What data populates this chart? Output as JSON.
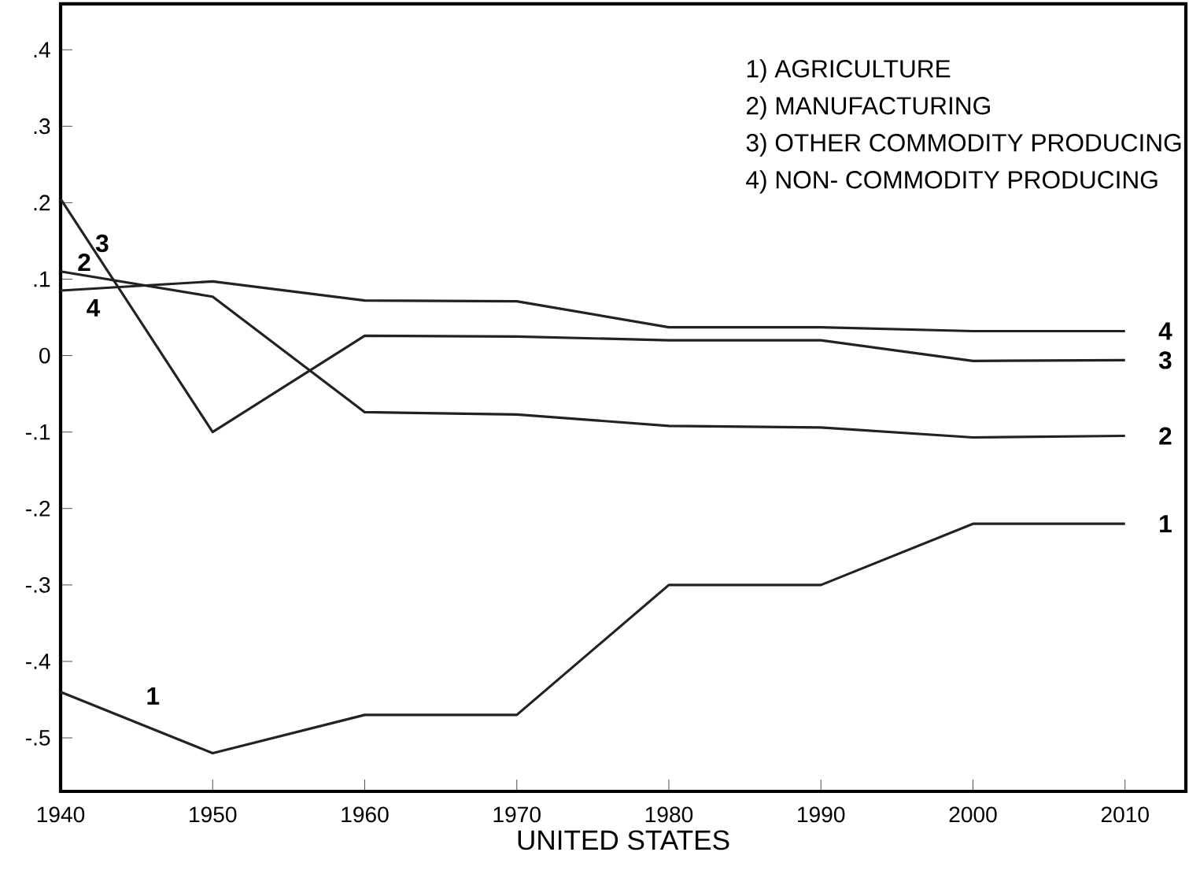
{
  "chart_data": {
    "type": "line",
    "xlabel": "UNITED STATES",
    "x": [
      1940,
      1950,
      1960,
      1970,
      1980,
      1990,
      2000,
      2010
    ],
    "series": [
      {
        "name": "1",
        "color": "#222222",
        "values": [
          -0.44,
          -0.52,
          -0.47,
          -0.47,
          -0.3,
          -0.3,
          -0.22,
          -0.22
        ]
      },
      {
        "name": "2",
        "color": "#222222",
        "values": [
          0.11,
          0.077,
          -0.074,
          -0.077,
          -0.092,
          -0.094,
          -0.107,
          -0.105
        ]
      },
      {
        "name": "3",
        "color": "#222222",
        "values": [
          0.205,
          -0.1,
          0.026,
          0.025,
          0.02,
          0.02,
          -0.007,
          -0.006
        ]
      },
      {
        "name": "4",
        "color": "#222222",
        "values": [
          0.085,
          0.097,
          0.072,
          0.071,
          0.037,
          0.037,
          0.032,
          0.032
        ]
      }
    ],
    "xlim": [
      1940,
      2014
    ],
    "ylim": [
      -0.57,
      0.46
    ],
    "xticks": [
      1940,
      1950,
      1960,
      1970,
      1980,
      1990,
      2000,
      2010
    ],
    "yticks": [
      {
        "value": -0.5,
        "label": "-.5"
      },
      {
        "value": -0.4,
        "label": "-.4"
      },
      {
        "value": -0.3,
        "label": "-.3"
      },
      {
        "value": -0.2,
        "label": "-.2"
      },
      {
        "value": -0.1,
        "label": "-.1"
      },
      {
        "value": 0,
        "label": "0"
      },
      {
        "value": 0.1,
        "label": ".1"
      },
      {
        "value": 0.2,
        "label": ".2"
      },
      {
        "value": 0.3,
        "label": ".3"
      },
      {
        "value": 0.4,
        "label": ".4"
      }
    ],
    "grid": false,
    "marker": "none",
    "line_style": "solid",
    "annotations": [
      "1) AGRICULTURE",
      "2) MANUFACTURING",
      "3) OTHER COMMODITY PRODUCING",
      "4) NON- COMMODITY PRODUCING",
      "1",
      "2",
      "3",
      "4"
    ]
  }
}
